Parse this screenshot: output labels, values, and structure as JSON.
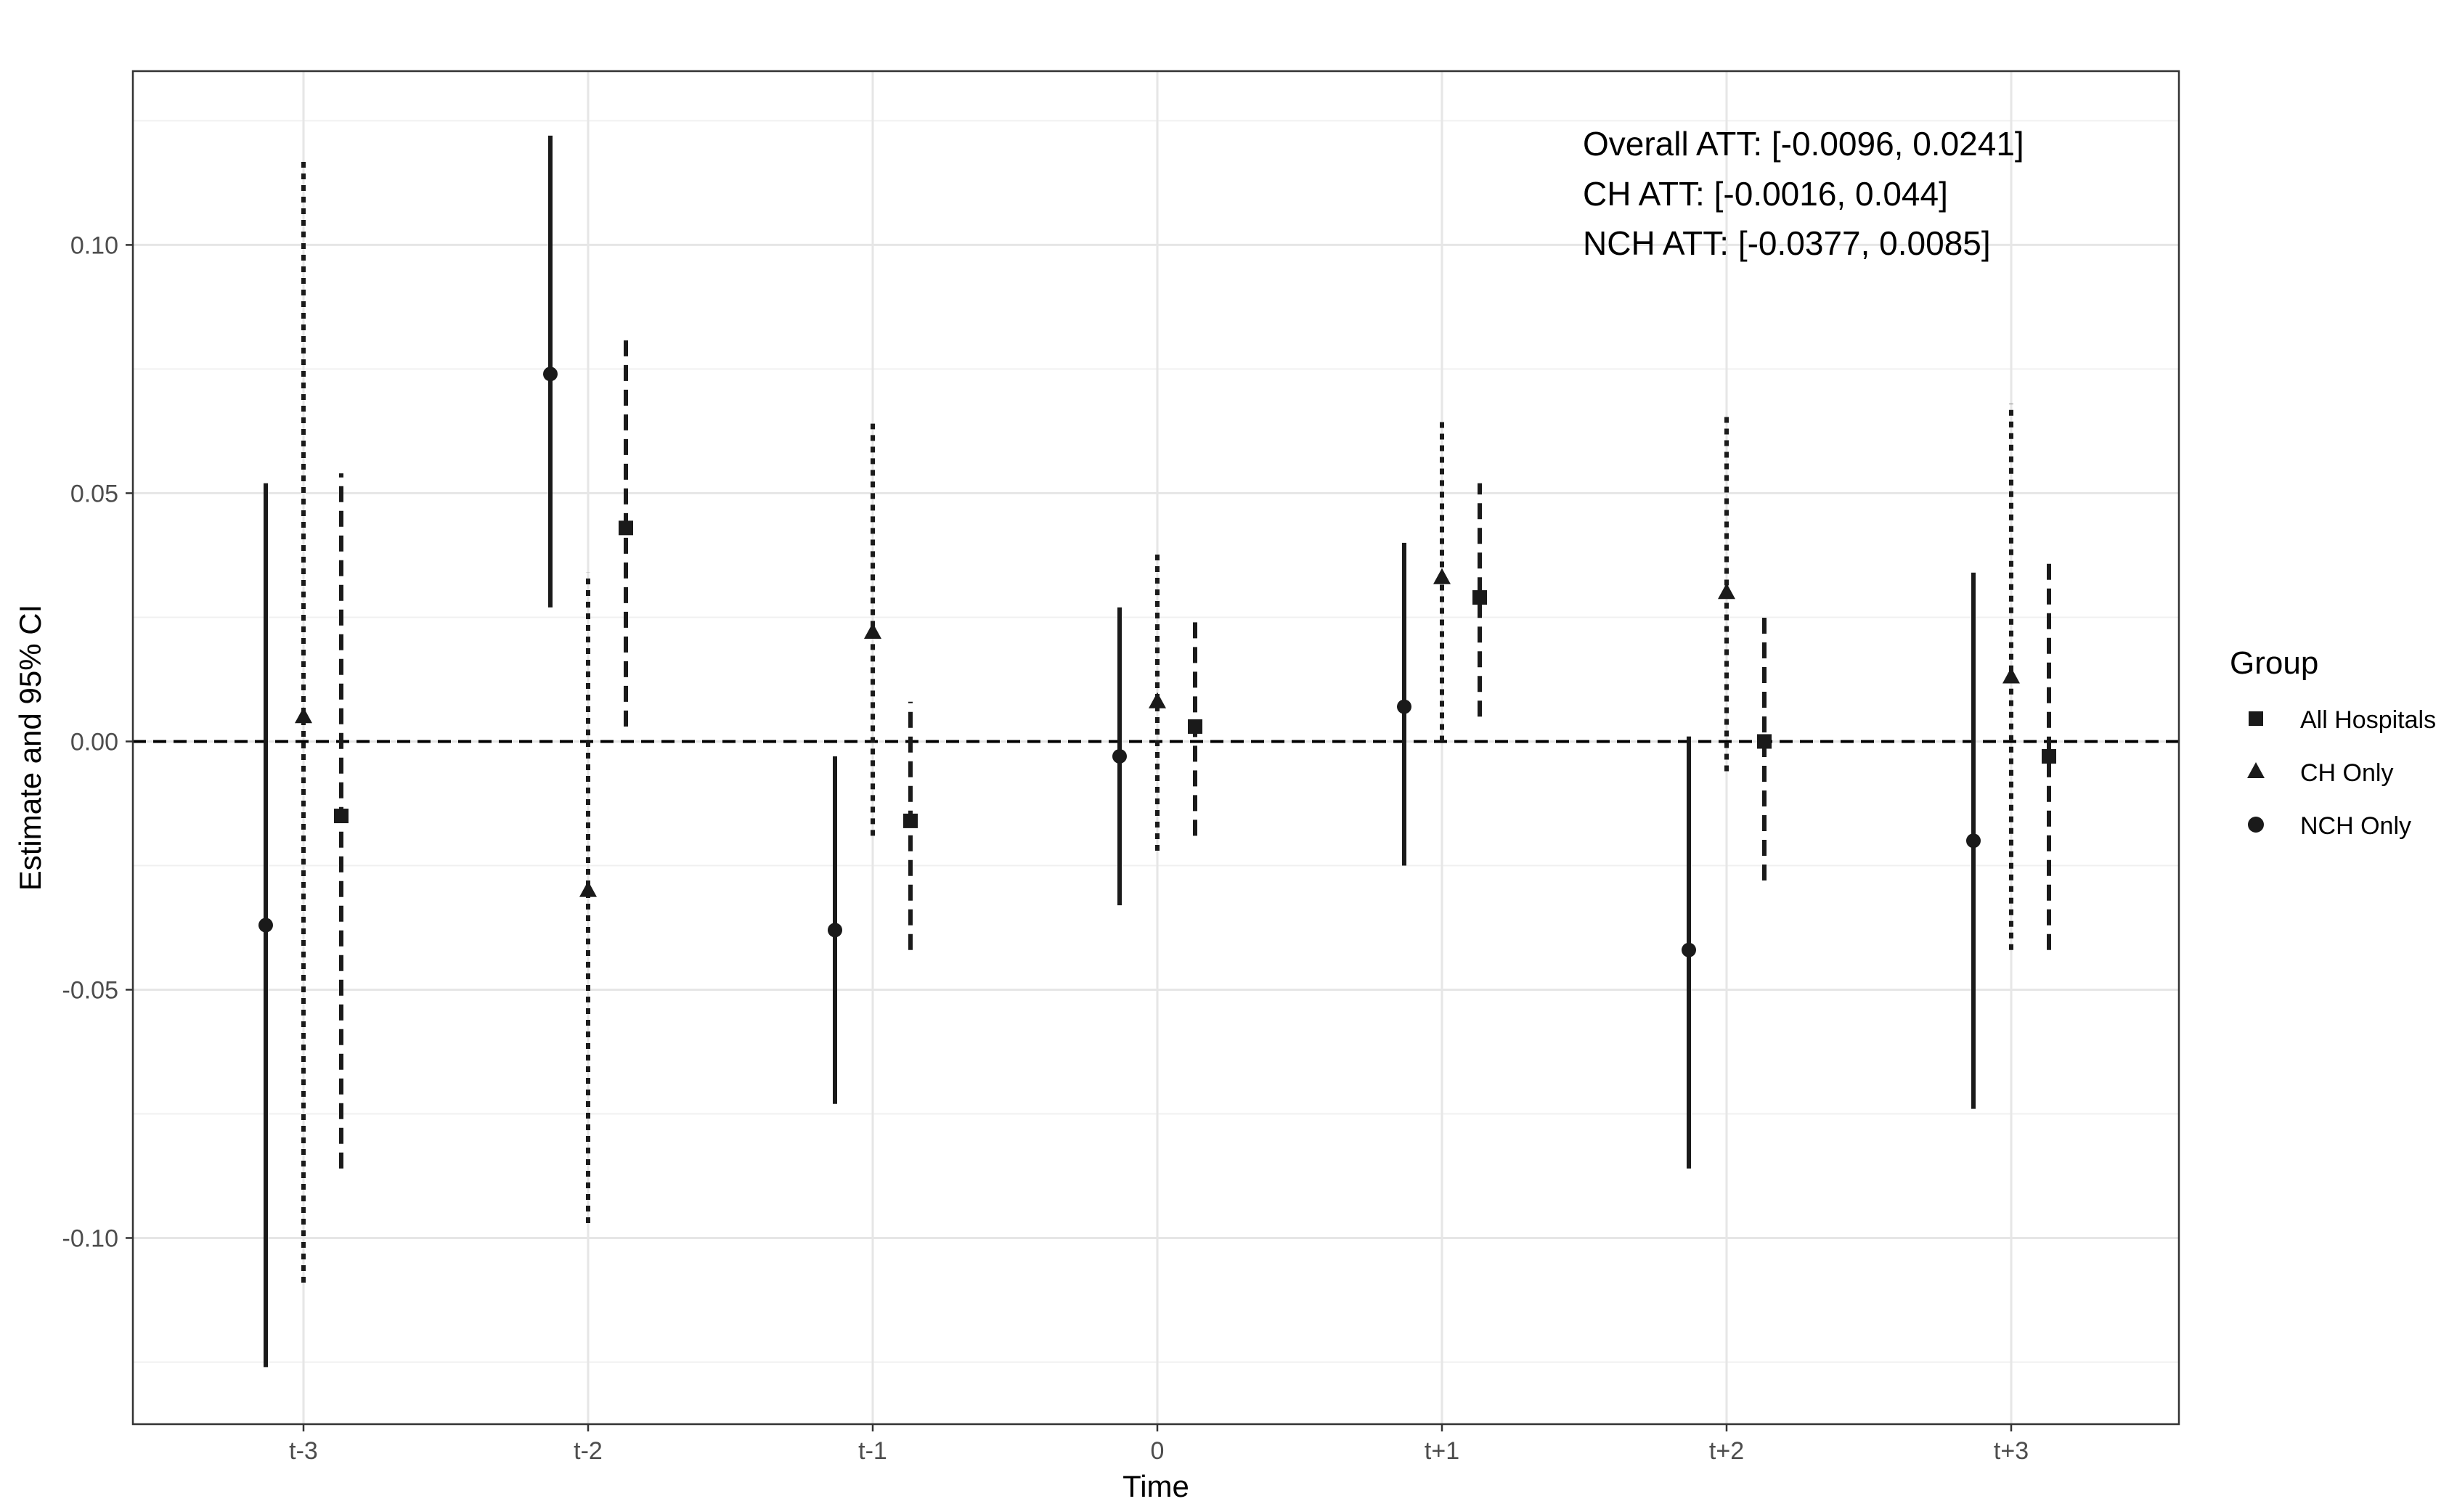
{
  "chart_data": {
    "type": "scatter",
    "title": "",
    "xlabel": "Time",
    "ylabel": "Estimate and 95% CI",
    "categories": [
      "t-3",
      "t-2",
      "t-1",
      "0",
      "t+1",
      "t+2",
      "t+3"
    ],
    "ylim": [
      -0.1375,
      0.135
    ],
    "yticks": [
      -0.1,
      -0.05,
      0.0,
      0.05,
      0.1
    ],
    "ytick_labels": [
      "-0.10",
      "-0.05",
      "0.00",
      "0.05",
      "0.10"
    ],
    "grid": true,
    "reference_line": {
      "y": 0,
      "style": "dashed"
    },
    "legend": {
      "title": "Group",
      "position": "right",
      "entries": [
        {
          "name": "All Hospitals",
          "shape": "square"
        },
        {
          "name": "CH Only",
          "shape": "triangle"
        },
        {
          "name": "NCH Only",
          "shape": "circle"
        }
      ]
    },
    "annotations": [
      "Overall ATT: [-0.0096, 0.0241]",
      "CH ATT: [-0.0016, 0.044]",
      "NCH ATT: [-0.0377, 0.0085]"
    ],
    "series": [
      {
        "name": "NCH Only",
        "shape": "circle",
        "line": "solid",
        "estimate": [
          -0.037,
          0.074,
          -0.038,
          -0.003,
          0.007,
          -0.042,
          -0.02
        ],
        "lower": [
          -0.126,
          0.027,
          -0.073,
          -0.033,
          -0.025,
          -0.086,
          -0.074
        ],
        "upper": [
          0.052,
          0.122,
          -0.003,
          0.027,
          0.04,
          0.001,
          0.034
        ]
      },
      {
        "name": "CH Only",
        "shape": "triangle",
        "line": "dotted",
        "estimate": [
          0.005,
          -0.03,
          0.022,
          0.008,
          0.033,
          0.03,
          0.013
        ],
        "lower": [
          -0.109,
          -0.097,
          -0.019,
          -0.022,
          0.0,
          -0.006,
          -0.042
        ],
        "upper": [
          0.117,
          0.034,
          0.064,
          0.038,
          0.065,
          0.066,
          0.068
        ]
      },
      {
        "name": "All Hospitals",
        "shape": "square",
        "line": "dashed",
        "estimate": [
          -0.015,
          0.043,
          -0.016,
          0.003,
          0.029,
          0.0,
          -0.003
        ],
        "lower": [
          -0.086,
          0.003,
          -0.042,
          -0.019,
          0.005,
          -0.028,
          -0.042
        ],
        "upper": [
          0.054,
          0.082,
          0.008,
          0.025,
          0.052,
          0.026,
          0.036
        ]
      }
    ]
  }
}
